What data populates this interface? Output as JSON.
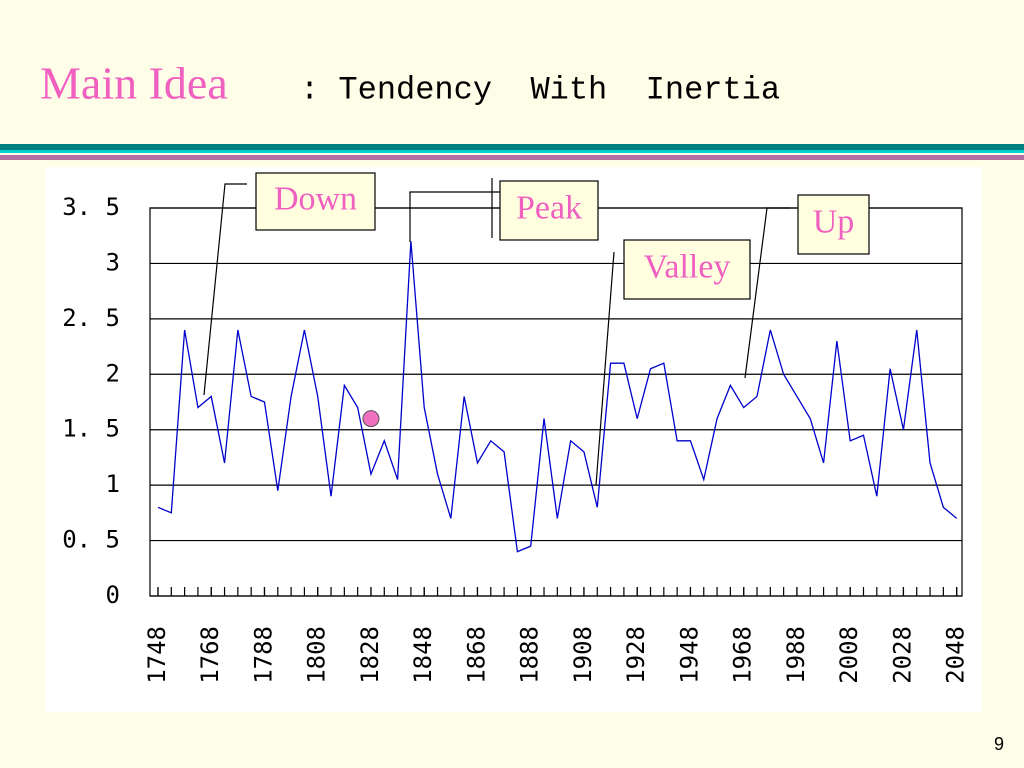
{
  "header": {
    "title": "Main Idea",
    "subtitle": ": Tendency  With  Inertia"
  },
  "chart_data": {
    "type": "line",
    "x": [
      1748,
      1753,
      1758,
      1763,
      1768,
      1773,
      1778,
      1783,
      1788,
      1793,
      1798,
      1803,
      1808,
      1813,
      1818,
      1823,
      1828,
      1833,
      1838,
      1843,
      1848,
      1853,
      1858,
      1863,
      1868,
      1873,
      1878,
      1883,
      1888,
      1893,
      1898,
      1903,
      1908,
      1913,
      1918,
      1923,
      1928,
      1933,
      1938,
      1943,
      1948,
      1953,
      1958,
      1963,
      1968,
      1973,
      1978,
      1983,
      1988,
      1993,
      1998,
      2003,
      2008,
      2013,
      2018,
      2023,
      2028,
      2033,
      2038,
      2043,
      2048
    ],
    "values": [
      0.8,
      0.75,
      2.4,
      1.7,
      1.8,
      1.2,
      2.4,
      1.8,
      1.75,
      0.95,
      1.8,
      2.4,
      1.8,
      0.9,
      1.9,
      1.7,
      1.1,
      1.4,
      1.05,
      3.2,
      1.7,
      1.1,
      0.7,
      1.8,
      1.2,
      1.4,
      1.3,
      0.4,
      0.45,
      1.6,
      0.7,
      1.4,
      1.3,
      0.8,
      2.1,
      2.1,
      1.6,
      2.05,
      2.1,
      1.4,
      1.4,
      1.05,
      1.6,
      1.9,
      1.7,
      1.8,
      2.4,
      2.0,
      1.8,
      1.6,
      1.2,
      2.3,
      1.4,
      1.45,
      0.9,
      2.05,
      1.5,
      2.4,
      1.2,
      0.8,
      0.7
    ],
    "color": "#0000cc",
    "xlim": [
      1745,
      2050
    ],
    "xticks": [
      1748,
      1768,
      1788,
      1808,
      1828,
      1848,
      1868,
      1888,
      1908,
      1928,
      1948,
      1968,
      1988,
      2008,
      2028,
      2048
    ],
    "ylim": [
      0,
      3.5
    ],
    "yticks": [
      0,
      {
        "value": 0.5,
        "label": "0. 5"
      },
      1,
      {
        "value": 1.5,
        "label": "1. 5"
      },
      2,
      {
        "value": 2.5,
        "label": "2. 5"
      },
      3,
      {
        "value": 3.5,
        "label": "3. 5"
      }
    ],
    "grid": true,
    "marker": {
      "x": 1828,
      "y": 1.6,
      "color": "#f070c0"
    },
    "annotations": [
      "Down",
      "Peak",
      "Valley",
      "Up"
    ]
  },
  "page_number": "9"
}
